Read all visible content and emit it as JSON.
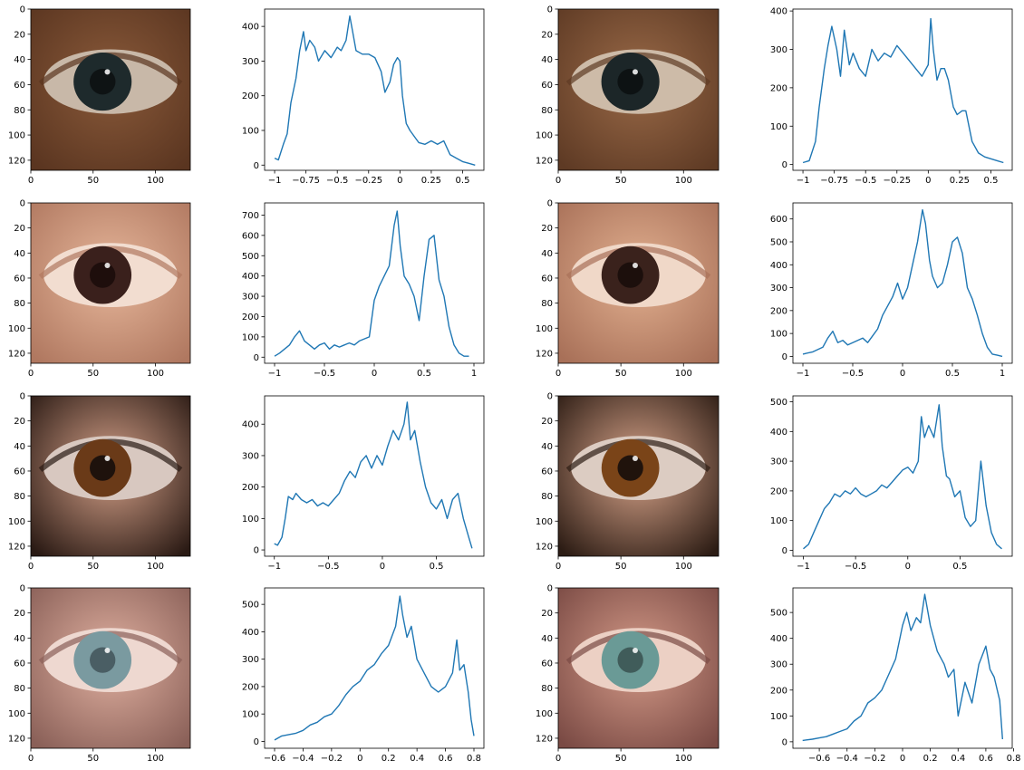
{
  "colors": {
    "line": "#1f77b4",
    "axis": "#000000",
    "background": "#ffffff"
  },
  "chart_data": [
    {
      "type": "image",
      "subject": "eye crop (brown skin, dark iris)",
      "row": 1,
      "col": 1,
      "xlim": [
        0,
        128
      ],
      "ylim": [
        128,
        0
      ],
      "xticks": [
        0,
        50,
        100
      ],
      "yticks": [
        0,
        20,
        40,
        60,
        80,
        100,
        120
      ],
      "palette": {
        "skin": "#8a5a3a",
        "skin_dark": "#5a3520",
        "sclera": "#c8b8a8",
        "iris": "#1e2a2c",
        "pupil": "#0e1314"
      }
    },
    {
      "type": "line",
      "row": 1,
      "col": 2,
      "xlim": [
        -1.08,
        0.67
      ],
      "ylim": [
        -15,
        450
      ],
      "xticks": [
        -1.0,
        -0.75,
        -0.5,
        -0.25,
        0.0,
        0.25,
        0.5
      ],
      "yticks": [
        0,
        100,
        200,
        300,
        400
      ],
      "series": [
        {
          "x": [
            -1.0,
            -0.97,
            -0.93,
            -0.9,
            -0.87,
            -0.83,
            -0.8,
            -0.77,
            -0.75,
            -0.72,
            -0.68,
            -0.65,
            -0.6,
            -0.55,
            -0.5,
            -0.47,
            -0.43,
            -0.4,
            -0.38,
            -0.35,
            -0.3,
            -0.25,
            -0.2,
            -0.15,
            -0.12,
            -0.08,
            -0.05,
            -0.02,
            0.0,
            0.02,
            0.05,
            0.08,
            0.12,
            0.15,
            0.2,
            0.25,
            0.3,
            0.35,
            0.4,
            0.45,
            0.5,
            0.55,
            0.6
          ],
          "y": [
            20,
            15,
            60,
            90,
            180,
            250,
            330,
            385,
            330,
            360,
            340,
            300,
            330,
            310,
            340,
            330,
            360,
            430,
            390,
            330,
            320,
            320,
            310,
            270,
            210,
            240,
            290,
            310,
            300,
            200,
            120,
            100,
            80,
            65,
            60,
            70,
            60,
            70,
            30,
            20,
            10,
            5,
            0
          ]
        }
      ]
    },
    {
      "type": "image",
      "subject": "eye crop (brown skin, dark iris)",
      "row": 1,
      "col": 3,
      "xlim": [
        0,
        128
      ],
      "ylim": [
        128,
        0
      ],
      "xticks": [
        0,
        50,
        100
      ],
      "yticks": [
        0,
        20,
        40,
        60,
        80,
        100,
        120
      ],
      "palette": {
        "skin": "#9a6a48",
        "skin_dark": "#5e3a24",
        "sclera": "#cdbba8",
        "iris": "#1c2628",
        "pupil": "#0d1213"
      }
    },
    {
      "type": "line",
      "row": 1,
      "col": 4,
      "xlim": [
        -1.08,
        0.67
      ],
      "ylim": [
        -15,
        405
      ],
      "xticks": [
        -1.0,
        -0.75,
        -0.5,
        -0.25,
        0.0,
        0.25,
        0.5
      ],
      "yticks": [
        0,
        100,
        200,
        300,
        400
      ],
      "series": [
        {
          "x": [
            -1.0,
            -0.95,
            -0.9,
            -0.87,
            -0.83,
            -0.8,
            -0.77,
            -0.73,
            -0.7,
            -0.67,
            -0.63,
            -0.6,
            -0.55,
            -0.5,
            -0.45,
            -0.4,
            -0.35,
            -0.3,
            -0.25,
            -0.2,
            -0.15,
            -0.1,
            -0.05,
            0.0,
            0.02,
            0.04,
            0.07,
            0.1,
            0.13,
            0.16,
            0.2,
            0.23,
            0.27,
            0.3,
            0.35,
            0.4,
            0.45,
            0.5,
            0.55,
            0.6
          ],
          "y": [
            5,
            10,
            60,
            150,
            250,
            310,
            360,
            300,
            230,
            350,
            260,
            290,
            250,
            230,
            300,
            270,
            290,
            280,
            310,
            290,
            270,
            250,
            230,
            260,
            380,
            300,
            220,
            250,
            250,
            220,
            150,
            130,
            140,
            140,
            60,
            30,
            20,
            15,
            10,
            5
          ]
        }
      ]
    },
    {
      "type": "image",
      "subject": "eye crop (light skin, dark iris)",
      "row": 2,
      "col": 1,
      "xlim": [
        0,
        128
      ],
      "ylim": [
        128,
        0
      ],
      "xticks": [
        0,
        50,
        100
      ],
      "yticks": [
        0,
        20,
        40,
        60,
        80,
        100,
        120
      ],
      "palette": {
        "skin": "#e6b69a",
        "skin_dark": "#b07860",
        "sclera": "#f2ddd0",
        "iris": "#3a201c",
        "pupil": "#1e0e0c"
      }
    },
    {
      "type": "line",
      "row": 2,
      "col": 2,
      "xlim": [
        -1.1,
        1.1
      ],
      "ylim": [
        -30,
        760
      ],
      "xticks": [
        -1.0,
        -0.5,
        0.0,
        0.5,
        1.0
      ],
      "yticks": [
        0,
        100,
        200,
        300,
        400,
        500,
        600,
        700
      ],
      "series": [
        {
          "x": [
            -1.0,
            -0.95,
            -0.9,
            -0.85,
            -0.8,
            -0.75,
            -0.7,
            -0.65,
            -0.6,
            -0.55,
            -0.5,
            -0.45,
            -0.4,
            -0.35,
            -0.3,
            -0.25,
            -0.2,
            -0.15,
            -0.1,
            -0.05,
            0.0,
            0.05,
            0.1,
            0.15,
            0.2,
            0.23,
            0.26,
            0.3,
            0.35,
            0.4,
            0.45,
            0.5,
            0.55,
            0.6,
            0.65,
            0.7,
            0.75,
            0.8,
            0.85,
            0.9,
            0.95
          ],
          "y": [
            5,
            20,
            40,
            60,
            100,
            130,
            80,
            60,
            40,
            60,
            70,
            40,
            60,
            50,
            60,
            70,
            60,
            80,
            90,
            100,
            280,
            350,
            400,
            450,
            650,
            720,
            550,
            400,
            360,
            300,
            180,
            400,
            580,
            600,
            380,
            300,
            150,
            60,
            20,
            5,
            5
          ]
        }
      ]
    },
    {
      "type": "image",
      "subject": "eye crop (light skin, dark iris)",
      "row": 2,
      "col": 3,
      "xlim": [
        0,
        128
      ],
      "ylim": [
        128,
        0
      ],
      "xticks": [
        0,
        50,
        100
      ],
      "yticks": [
        0,
        20,
        40,
        60,
        80,
        100,
        120
      ],
      "palette": {
        "skin": "#e2b090",
        "skin_dark": "#a87058",
        "sclera": "#f0d8c8",
        "iris": "#3a221c",
        "pupil": "#1c0f0c"
      }
    },
    {
      "type": "line",
      "row": 2,
      "col": 4,
      "xlim": [
        -1.1,
        1.1
      ],
      "ylim": [
        -30,
        670
      ],
      "xticks": [
        -1.0,
        -0.5,
        0.0,
        0.5,
        1.0
      ],
      "yticks": [
        0,
        100,
        200,
        300,
        400,
        500,
        600
      ],
      "series": [
        {
          "x": [
            -1.0,
            -0.9,
            -0.8,
            -0.75,
            -0.7,
            -0.65,
            -0.6,
            -0.55,
            -0.5,
            -0.45,
            -0.4,
            -0.35,
            -0.3,
            -0.25,
            -0.2,
            -0.15,
            -0.1,
            -0.05,
            0.0,
            0.05,
            0.1,
            0.15,
            0.2,
            0.23,
            0.27,
            0.3,
            0.35,
            0.4,
            0.45,
            0.5,
            0.55,
            0.6,
            0.65,
            0.7,
            0.75,
            0.8,
            0.85,
            0.9,
            0.95,
            1.0
          ],
          "y": [
            10,
            20,
            40,
            80,
            110,
            60,
            70,
            50,
            60,
            70,
            80,
            60,
            90,
            120,
            180,
            220,
            260,
            320,
            250,
            300,
            400,
            500,
            640,
            580,
            420,
            350,
            300,
            320,
            400,
            500,
            520,
            450,
            300,
            250,
            180,
            100,
            40,
            10,
            5,
            0
          ]
        }
      ]
    },
    {
      "type": "image",
      "subject": "eye crop (tan skin, brown iris)",
      "row": 3,
      "col": 1,
      "xlim": [
        0,
        128
      ],
      "ylim": [
        128,
        0
      ],
      "xticks": [
        0,
        50,
        100
      ],
      "yticks": [
        0,
        20,
        40,
        60,
        80,
        100,
        120
      ],
      "palette": {
        "skin": "#d4a088",
        "skin_dark": "#2a1a14",
        "sclera": "#d8c8c0",
        "iris": "#6a3a18",
        "pupil": "#1e120c"
      }
    },
    {
      "type": "line",
      "row": 3,
      "col": 2,
      "xlim": [
        -1.09,
        0.94
      ],
      "ylim": [
        -20,
        490
      ],
      "xticks": [
        -1.0,
        -0.5,
        0.0,
        0.5
      ],
      "yticks": [
        0,
        100,
        200,
        300,
        400
      ],
      "series": [
        {
          "x": [
            -1.0,
            -0.97,
            -0.93,
            -0.9,
            -0.87,
            -0.83,
            -0.8,
            -0.75,
            -0.7,
            -0.65,
            -0.6,
            -0.55,
            -0.5,
            -0.45,
            -0.4,
            -0.35,
            -0.3,
            -0.25,
            -0.2,
            -0.15,
            -0.1,
            -0.05,
            0.0,
            0.05,
            0.1,
            0.15,
            0.2,
            0.23,
            0.26,
            0.3,
            0.35,
            0.4,
            0.45,
            0.5,
            0.55,
            0.6,
            0.65,
            0.7,
            0.75,
            0.8,
            0.83
          ],
          "y": [
            20,
            15,
            40,
            100,
            170,
            160,
            180,
            160,
            150,
            160,
            140,
            150,
            140,
            160,
            180,
            220,
            250,
            230,
            280,
            300,
            260,
            300,
            270,
            330,
            380,
            350,
            400,
            470,
            350,
            380,
            280,
            200,
            150,
            130,
            160,
            100,
            160,
            180,
            100,
            40,
            5
          ]
        }
      ]
    },
    {
      "type": "image",
      "subject": "eye crop (tan skin, brown iris)",
      "row": 3,
      "col": 3,
      "xlim": [
        0,
        128
      ],
      "ylim": [
        128,
        0
      ],
      "xticks": [
        0,
        50,
        100
      ],
      "yticks": [
        0,
        20,
        40,
        60,
        80,
        100,
        120
      ],
      "palette": {
        "skin": "#d8a48a",
        "skin_dark": "#2c1c14",
        "sclera": "#dcccc2",
        "iris": "#7a4418",
        "pupil": "#20130c"
      }
    },
    {
      "type": "line",
      "row": 3,
      "col": 4,
      "xlim": [
        -1.1,
        1.0
      ],
      "ylim": [
        -20,
        520
      ],
      "xticks": [
        -1.0,
        -0.5,
        0.0,
        0.5
      ],
      "yticks": [
        0,
        100,
        200,
        300,
        400,
        500
      ],
      "series": [
        {
          "x": [
            -1.0,
            -0.95,
            -0.9,
            -0.85,
            -0.8,
            -0.75,
            -0.7,
            -0.65,
            -0.6,
            -0.55,
            -0.5,
            -0.45,
            -0.4,
            -0.35,
            -0.3,
            -0.25,
            -0.2,
            -0.15,
            -0.1,
            -0.05,
            0.0,
            0.05,
            0.1,
            0.13,
            0.16,
            0.2,
            0.25,
            0.3,
            0.33,
            0.37,
            0.4,
            0.45,
            0.5,
            0.55,
            0.6,
            0.65,
            0.7,
            0.75,
            0.8,
            0.85,
            0.9
          ],
          "y": [
            5,
            20,
            60,
            100,
            140,
            160,
            190,
            180,
            200,
            190,
            210,
            190,
            180,
            190,
            200,
            220,
            210,
            230,
            250,
            270,
            280,
            260,
            300,
            450,
            380,
            420,
            380,
            490,
            350,
            250,
            240,
            180,
            200,
            110,
            80,
            100,
            300,
            150,
            60,
            20,
            5
          ]
        }
      ]
    },
    {
      "type": "image",
      "subject": "eye crop (pale skin, grey-blue iris)",
      "row": 4,
      "col": 1,
      "xlim": [
        0,
        128
      ],
      "ylim": [
        128,
        0
      ],
      "xticks": [
        0,
        50,
        100
      ],
      "yticks": [
        0,
        20,
        40,
        60,
        80,
        100,
        120
      ],
      "palette": {
        "skin": "#e0b0a0",
        "skin_dark": "#8a6058",
        "sclera": "#eed8d0",
        "iris": "#7a9aa0",
        "pupil": "#4a5e64"
      }
    },
    {
      "type": "line",
      "row": 4,
      "col": 2,
      "xlim": [
        -0.67,
        0.87
      ],
      "ylim": [
        -25,
        560
      ],
      "xticks": [
        -0.6,
        -0.4,
        -0.2,
        0.0,
        0.2,
        0.4,
        0.6,
        0.8
      ],
      "yticks": [
        0,
        100,
        200,
        300,
        400,
        500
      ],
      "series": [
        {
          "x": [
            -0.6,
            -0.55,
            -0.5,
            -0.45,
            -0.4,
            -0.35,
            -0.3,
            -0.25,
            -0.2,
            -0.15,
            -0.1,
            -0.05,
            0.0,
            0.05,
            0.1,
            0.15,
            0.2,
            0.25,
            0.28,
            0.3,
            0.33,
            0.36,
            0.4,
            0.45,
            0.5,
            0.55,
            0.6,
            0.65,
            0.68,
            0.7,
            0.73,
            0.76,
            0.78,
            0.8
          ],
          "y": [
            5,
            20,
            25,
            30,
            40,
            60,
            70,
            90,
            100,
            130,
            170,
            200,
            220,
            260,
            280,
            320,
            350,
            420,
            530,
            460,
            380,
            420,
            300,
            250,
            200,
            180,
            200,
            250,
            370,
            260,
            280,
            180,
            80,
            20
          ]
        }
      ]
    },
    {
      "type": "image",
      "subject": "eye crop (pale skin, grey-blue iris)",
      "row": 4,
      "col": 3,
      "xlim": [
        0,
        128
      ],
      "ylim": [
        128,
        0
      ],
      "xticks": [
        0,
        50,
        100
      ],
      "yticks": [
        0,
        20,
        40,
        60,
        80,
        100,
        120
      ],
      "palette": {
        "skin": "#d49a88",
        "skin_dark": "#7a4a44",
        "sclera": "#ecd0c4",
        "iris": "#6a9a96",
        "pupil": "#405c5a"
      }
    },
    {
      "type": "line",
      "row": 4,
      "col": 4,
      "xlim": [
        -0.79,
        0.79
      ],
      "ylim": [
        -25,
        595
      ],
      "xticks": [
        -0.6,
        -0.4,
        -0.2,
        0.0,
        0.2,
        0.4,
        0.6,
        0.8
      ],
      "yticks": [
        0,
        100,
        200,
        300,
        400,
        500
      ],
      "series": [
        {
          "x": [
            -0.72,
            -0.65,
            -0.6,
            -0.55,
            -0.5,
            -0.45,
            -0.4,
            -0.35,
            -0.3,
            -0.25,
            -0.2,
            -0.15,
            -0.1,
            -0.05,
            0.0,
            0.03,
            0.06,
            0.1,
            0.13,
            0.16,
            0.2,
            0.25,
            0.3,
            0.33,
            0.37,
            0.4,
            0.45,
            0.5,
            0.55,
            0.6,
            0.63,
            0.66,
            0.7,
            0.72
          ],
          "y": [
            5,
            10,
            15,
            20,
            30,
            40,
            50,
            80,
            100,
            150,
            170,
            200,
            260,
            320,
            450,
            500,
            430,
            480,
            460,
            570,
            450,
            350,
            300,
            250,
            280,
            100,
            230,
            150,
            300,
            370,
            280,
            250,
            160,
            10
          ]
        }
      ]
    }
  ]
}
